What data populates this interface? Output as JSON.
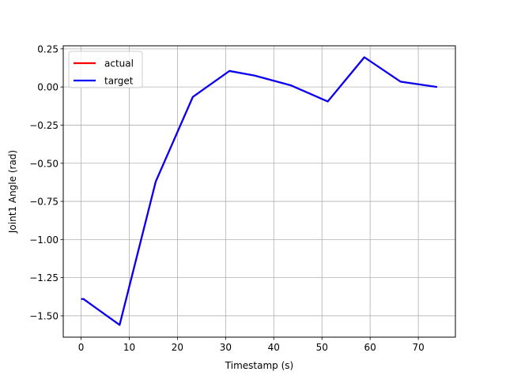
{
  "chart_data": {
    "type": "line",
    "title": "",
    "xlabel": "Timestamp (s)",
    "ylabel": "Joint1 Angle (rad)",
    "xlim": [
      -3.7,
      77.7
    ],
    "ylim": [
      -1.64,
      0.27
    ],
    "xticks": [
      0,
      10,
      20,
      30,
      40,
      50,
      60,
      70
    ],
    "xtick_labels": [
      "0",
      "10",
      "20",
      "30",
      "40",
      "50",
      "60",
      "70"
    ],
    "yticks": [
      0.25,
      0.0,
      -0.25,
      -0.5,
      -0.75,
      -1.0,
      -1.25,
      -1.5
    ],
    "ytick_labels": [
      "0.25",
      "0.00",
      "−0.25",
      "−0.50",
      "−0.75",
      "−1.00",
      "−1.25",
      "−1.50"
    ],
    "grid": true,
    "legend_position": "upper-left",
    "series": [
      {
        "name": "actual",
        "color": "#ff0000",
        "x": [
          0.0,
          0.5,
          8.0,
          15.5,
          23.2,
          30.8,
          36.0,
          43.6,
          51.2,
          58.8,
          66.3,
          73.9
        ],
        "y": [
          -1.39,
          -1.39,
          -1.56,
          -0.62,
          -0.065,
          0.105,
          0.075,
          0.01,
          -0.095,
          0.195,
          0.035,
          0.0
        ]
      },
      {
        "name": "target",
        "color": "#0000ff",
        "x": [
          0.0,
          0.5,
          8.0,
          15.5,
          23.2,
          30.8,
          36.0,
          43.6,
          51.2,
          58.8,
          66.3,
          73.9
        ],
        "y": [
          -1.39,
          -1.39,
          -1.56,
          -0.62,
          -0.065,
          0.105,
          0.075,
          0.01,
          -0.095,
          0.195,
          0.035,
          0.0
        ]
      }
    ]
  }
}
